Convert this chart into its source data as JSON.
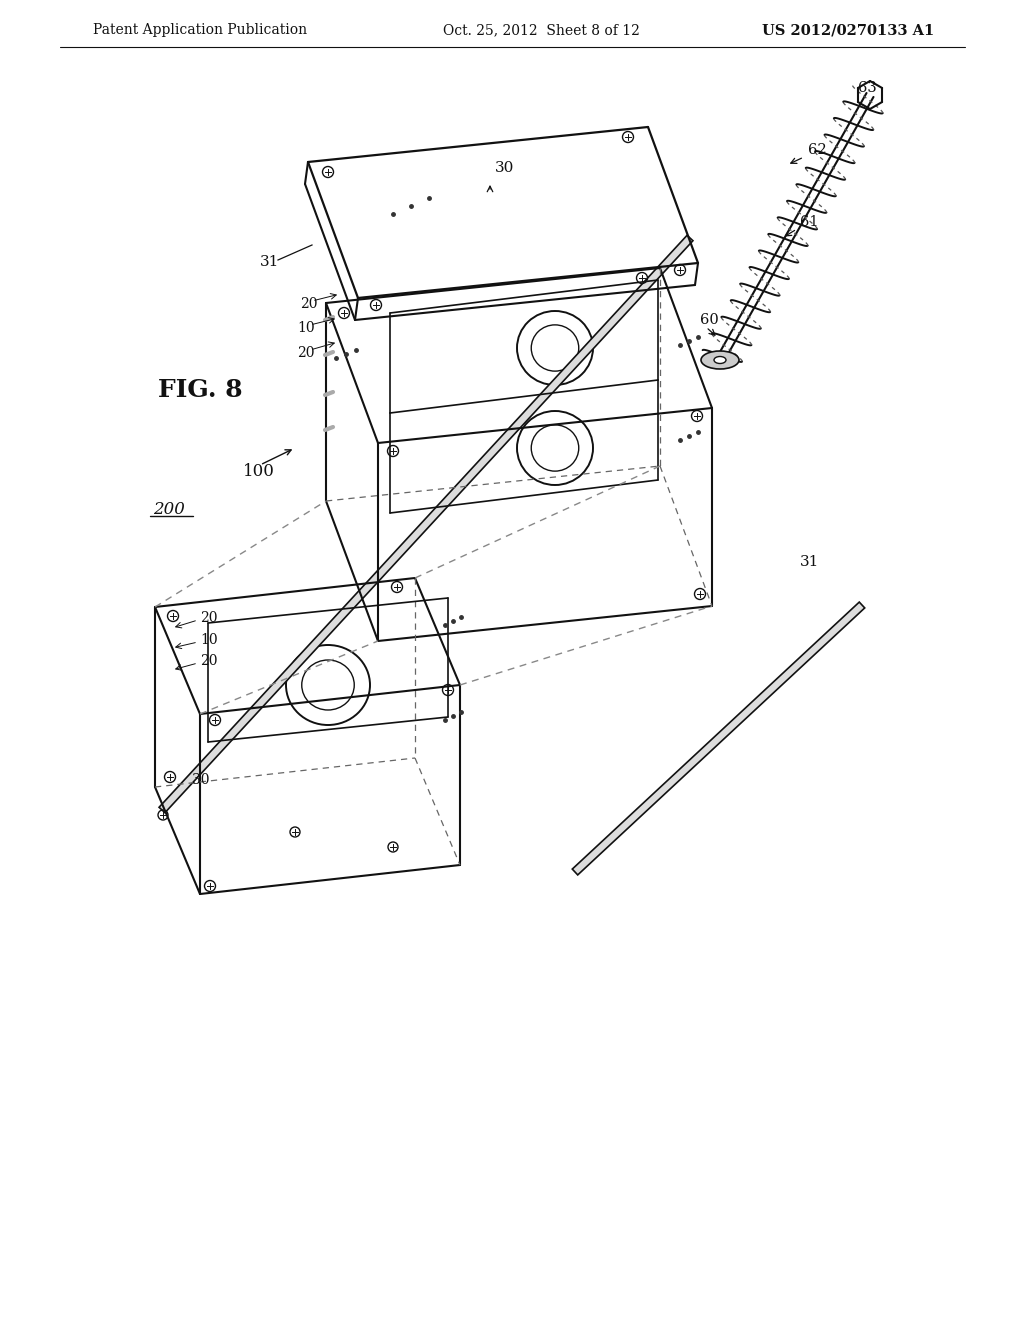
{
  "bg_color": "#ffffff",
  "line_color": "#111111",
  "header_left": "Patent Application Publication",
  "header_mid": "Oct. 25, 2012  Sheet 8 of 12",
  "header_right": "US 2012/0270133 A1",
  "fig_label": "FIG. 8"
}
